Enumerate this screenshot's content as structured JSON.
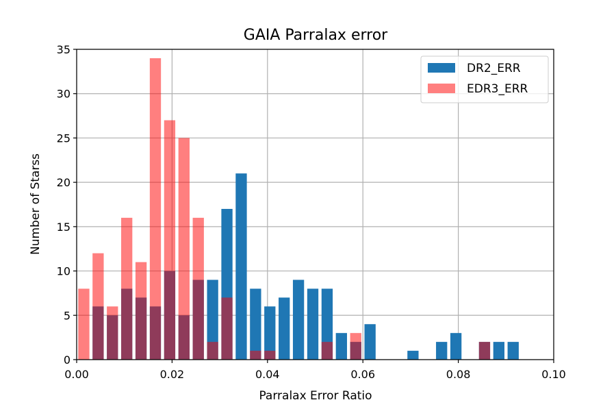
{
  "chart_data": {
    "type": "bar",
    "title": "GAIA Parralax error",
    "xlabel": "Parralax Error Ratio",
    "ylabel": "Number of Starss",
    "xlim": [
      0.0,
      0.1
    ],
    "ylim": [
      0,
      35
    ],
    "xticks": [
      "0.00",
      "0.02",
      "0.04",
      "0.06",
      "0.08",
      "0.10"
    ],
    "yticks": [
      "0",
      "5",
      "10",
      "15",
      "20",
      "25",
      "30",
      "35"
    ],
    "grid": true,
    "legend_position": "top-right",
    "bin_width": 0.003,
    "x": [
      0.0015,
      0.0045,
      0.0075,
      0.0105,
      0.0135,
      0.0165,
      0.0195,
      0.0225,
      0.0255,
      0.0285,
      0.0315,
      0.0345,
      0.0375,
      0.0405,
      0.0435,
      0.0465,
      0.0495,
      0.0525,
      0.0555,
      0.0585,
      0.0615,
      0.0645,
      0.0675,
      0.0705,
      0.0735,
      0.0765,
      0.0795,
      0.0825,
      0.0855,
      0.0885,
      0.0915
    ],
    "series": [
      {
        "name": "DR2_ERR",
        "color": "#1f77b4",
        "alpha": 1.0,
        "values": [
          0,
          6,
          5,
          8,
          7,
          6,
          10,
          5,
          9,
          9,
          17,
          21,
          8,
          6,
          7,
          9,
          8,
          8,
          3,
          2,
          4,
          0,
          0,
          1,
          0,
          2,
          3,
          0,
          2,
          2,
          2
        ]
      },
      {
        "name": "EDR3_ERR",
        "color": "#ff0000",
        "alpha": 0.5,
        "values": [
          8,
          12,
          6,
          16,
          11,
          34,
          27,
          25,
          16,
          2,
          7,
          0,
          1,
          1,
          0,
          0,
          0,
          2,
          0,
          3,
          0,
          0,
          0,
          0,
          0,
          0,
          0,
          0,
          2,
          0,
          0
        ]
      }
    ]
  }
}
